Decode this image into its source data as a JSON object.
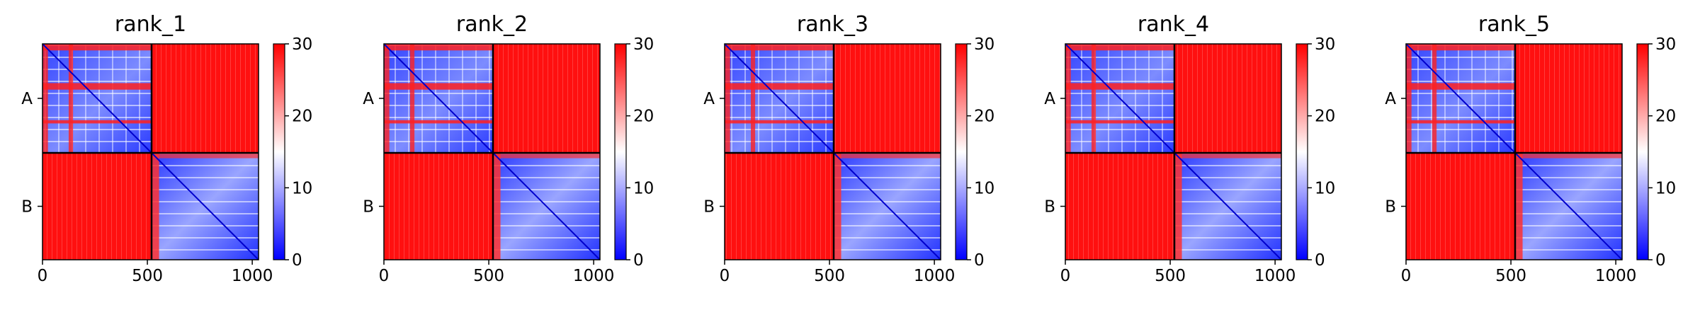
{
  "chart_data": [
    {
      "type": "heatmap",
      "title": "rank_1",
      "x_ticks": [
        "0",
        "500",
        "1000"
      ],
      "x_tick_values": [
        0,
        500,
        1000
      ],
      "y_ticks": [
        "A",
        "B"
      ],
      "chain_boundary": 520,
      "xlim": [
        0,
        1030
      ],
      "colorbar": {
        "ticks": [
          "0",
          "10",
          "20",
          "30"
        ],
        "range": [
          0,
          30
        ],
        "colors": [
          "#0000ff",
          "#ffffff",
          "#ff0000"
        ]
      }
    },
    {
      "type": "heatmap",
      "title": "rank_2",
      "x_ticks": [
        "0",
        "500",
        "1000"
      ],
      "x_tick_values": [
        0,
        500,
        1000
      ],
      "y_ticks": [
        "A",
        "B"
      ],
      "chain_boundary": 520,
      "xlim": [
        0,
        1030
      ],
      "colorbar": {
        "ticks": [
          "0",
          "10",
          "20",
          "30"
        ],
        "range": [
          0,
          30
        ],
        "colors": [
          "#0000ff",
          "#ffffff",
          "#ff0000"
        ]
      }
    },
    {
      "type": "heatmap",
      "title": "rank_3",
      "x_ticks": [
        "0",
        "500",
        "1000"
      ],
      "x_tick_values": [
        0,
        500,
        1000
      ],
      "y_ticks": [
        "A",
        "B"
      ],
      "chain_boundary": 520,
      "xlim": [
        0,
        1030
      ],
      "colorbar": {
        "ticks": [
          "0",
          "10",
          "20",
          "30"
        ],
        "range": [
          0,
          30
        ],
        "colors": [
          "#0000ff",
          "#ffffff",
          "#ff0000"
        ]
      }
    },
    {
      "type": "heatmap",
      "title": "rank_4",
      "x_ticks": [
        "0",
        "500",
        "1000"
      ],
      "x_tick_values": [
        0,
        500,
        1000
      ],
      "y_ticks": [
        "A",
        "B"
      ],
      "chain_boundary": 520,
      "xlim": [
        0,
        1030
      ],
      "colorbar": {
        "ticks": [
          "0",
          "10",
          "20",
          "30"
        ],
        "range": [
          0,
          30
        ],
        "colors": [
          "#0000ff",
          "#ffffff",
          "#ff0000"
        ]
      }
    },
    {
      "type": "heatmap",
      "title": "rank_5",
      "x_ticks": [
        "0",
        "500",
        "1000"
      ],
      "x_tick_values": [
        0,
        500,
        1000
      ],
      "y_ticks": [
        "A",
        "B"
      ],
      "chain_boundary": 520,
      "xlim": [
        0,
        1030
      ],
      "colorbar": {
        "ticks": [
          "0",
          "10",
          "20",
          "30"
        ],
        "range": [
          0,
          30
        ],
        "colors": [
          "#0000ff",
          "#ffffff",
          "#ff0000"
        ]
      }
    }
  ]
}
